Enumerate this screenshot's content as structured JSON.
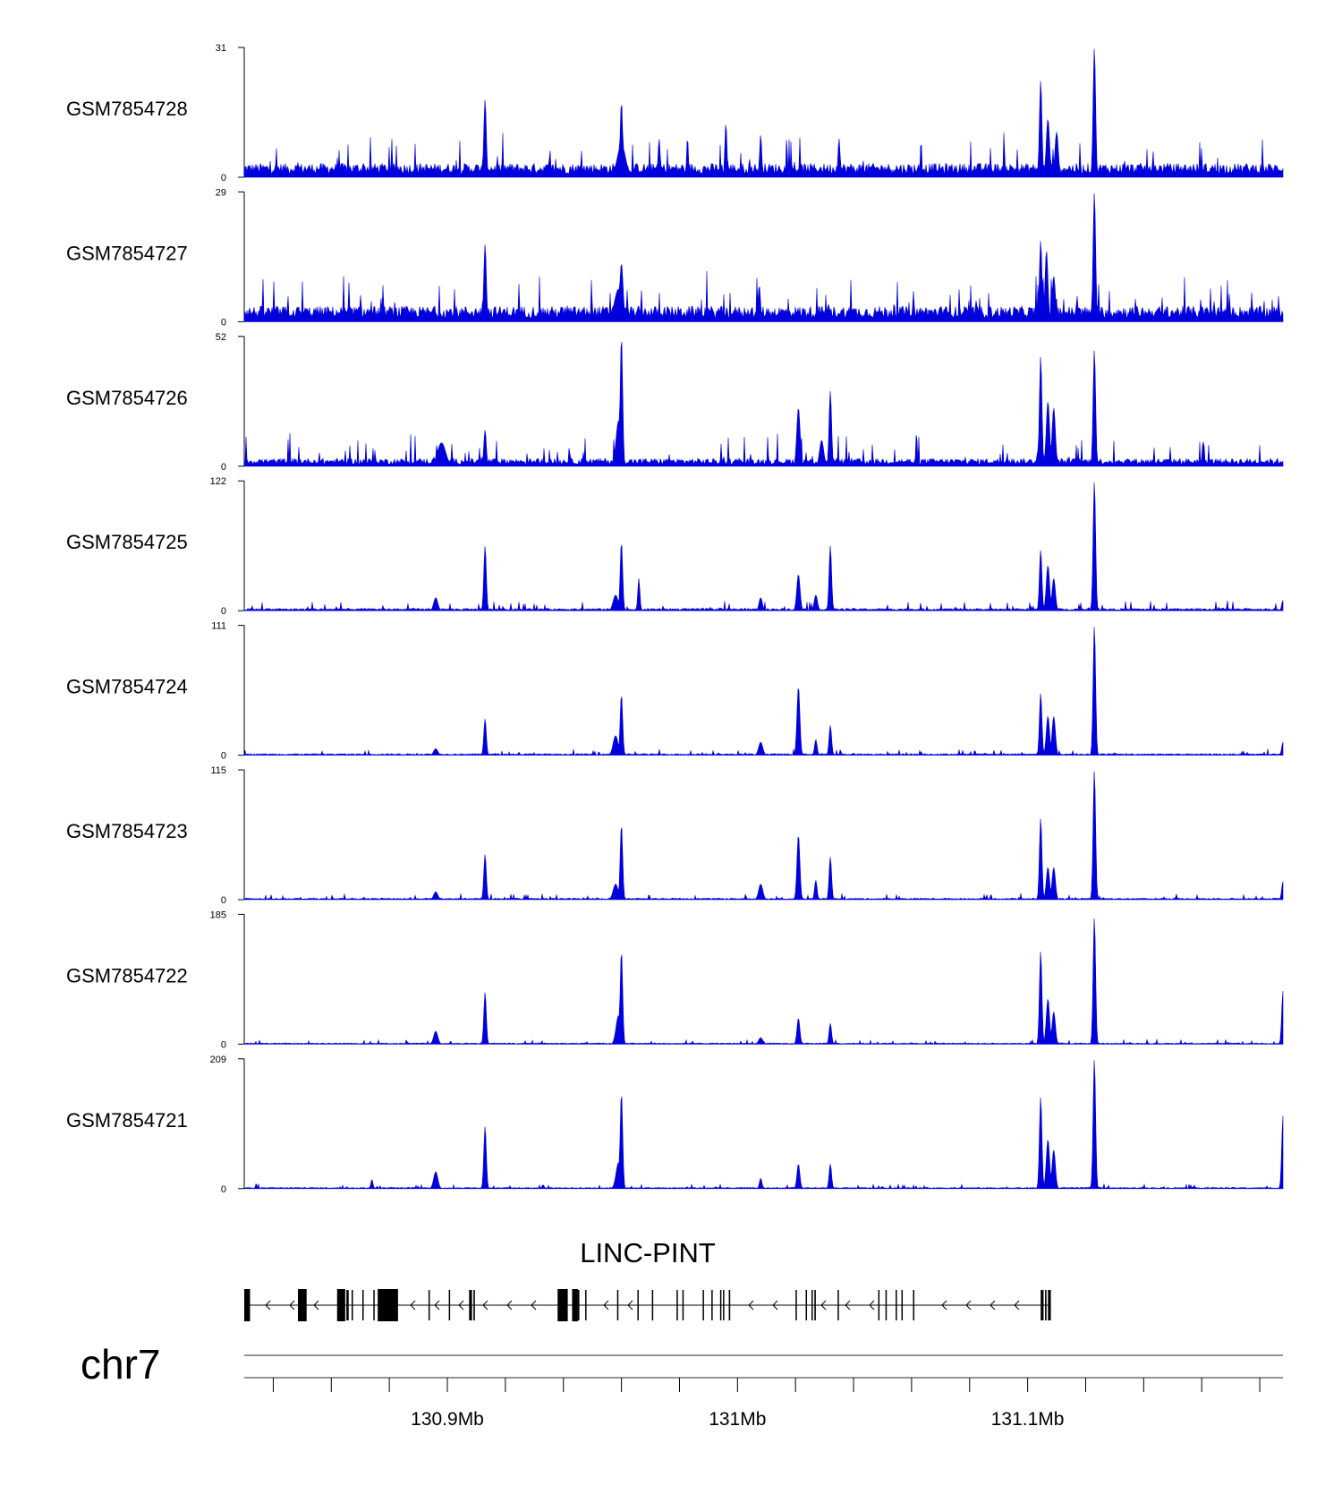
{
  "chart_data": {
    "type": "area",
    "title": "",
    "region": {
      "chromosome": "chr7",
      "start_mb": 130.83,
      "end_mb": 131.188
    },
    "xaxis": {
      "ticks_mb": [
        130.9,
        131.0,
        131.1
      ],
      "tick_labels": [
        "130.9Mb",
        "131Mb",
        "131.1Mb"
      ]
    },
    "color": "#0000dd",
    "series": [
      {
        "name": "GSM7854728",
        "ymax": 31,
        "ymax_label": "31",
        "ymin_label": "0",
        "baseline": 0.09,
        "noise": 0.1,
        "peaks": [
          [
            130.913,
            0.6,
            0.0006
          ],
          [
            130.96,
            0.58,
            0.0006
          ],
          [
            130.96,
            0.25,
            0.002
          ],
          [
            130.973,
            0.3,
            0.0005
          ],
          [
            130.996,
            0.42,
            0.0005
          ],
          [
            131.008,
            0.33,
            0.0005
          ],
          [
            131.035,
            0.3,
            0.0005
          ],
          [
            131.1045,
            0.75,
            0.0006
          ],
          [
            131.107,
            0.45,
            0.0008
          ],
          [
            131.11,
            0.35,
            0.0008
          ],
          [
            131.123,
            1.0,
            0.0006
          ]
        ]
      },
      {
        "name": "GSM7854727",
        "ymax": 29,
        "ymax_label": "29",
        "ymin_label": "0",
        "baseline": 0.1,
        "noise": 0.11,
        "peaks": [
          [
            130.913,
            0.6,
            0.0006
          ],
          [
            130.96,
            0.45,
            0.0008
          ],
          [
            130.959,
            0.25,
            0.002
          ],
          [
            131.0075,
            0.28,
            0.0006
          ],
          [
            131.1045,
            0.63,
            0.0006
          ],
          [
            131.1065,
            0.55,
            0.0007
          ],
          [
            131.109,
            0.35,
            0.0008
          ],
          [
            131.123,
            1.0,
            0.0006
          ]
        ]
      },
      {
        "name": "GSM7854726",
        "ymax": 52,
        "ymax_label": "52",
        "ymin_label": "0",
        "baseline": 0.05,
        "noise": 0.08,
        "peaks": [
          [
            130.898,
            0.18,
            0.002
          ],
          [
            130.913,
            0.28,
            0.0006
          ],
          [
            130.96,
            1.0,
            0.0006
          ],
          [
            130.959,
            0.35,
            0.0012
          ],
          [
            131.021,
            0.45,
            0.0008
          ],
          [
            131.032,
            0.58,
            0.0006
          ],
          [
            131.029,
            0.2,
            0.001
          ],
          [
            131.1045,
            0.85,
            0.0006
          ],
          [
            131.107,
            0.5,
            0.0008
          ],
          [
            131.109,
            0.45,
            0.0008
          ],
          [
            131.123,
            0.9,
            0.0006
          ]
        ]
      },
      {
        "name": "GSM7854725",
        "ymax": 122,
        "ymax_label": "122",
        "ymin_label": "0",
        "baseline": 0.015,
        "noise": 0.025,
        "peaks": [
          [
            130.896,
            0.1,
            0.001
          ],
          [
            130.913,
            0.5,
            0.0006
          ],
          [
            130.96,
            0.53,
            0.0006
          ],
          [
            130.958,
            0.12,
            0.0012
          ],
          [
            130.966,
            0.25,
            0.0005
          ],
          [
            131.008,
            0.1,
            0.0008
          ],
          [
            131.021,
            0.28,
            0.0008
          ],
          [
            131.032,
            0.5,
            0.0006
          ],
          [
            131.027,
            0.12,
            0.0008
          ],
          [
            131.1045,
            0.47,
            0.0006
          ],
          [
            131.107,
            0.35,
            0.0008
          ],
          [
            131.109,
            0.25,
            0.0008
          ],
          [
            131.123,
            1.0,
            0.0006
          ],
          [
            131.188,
            0.08,
            0.0006
          ]
        ]
      },
      {
        "name": "GSM7854724",
        "ymax": 111,
        "ymax_label": "111",
        "ymin_label": "0",
        "baseline": 0.01,
        "noise": 0.015,
        "peaks": [
          [
            130.896,
            0.05,
            0.001
          ],
          [
            130.913,
            0.28,
            0.0006
          ],
          [
            130.96,
            0.47,
            0.0006
          ],
          [
            130.958,
            0.15,
            0.0012
          ],
          [
            131.008,
            0.1,
            0.001
          ],
          [
            131.021,
            0.53,
            0.0007
          ],
          [
            131.027,
            0.12,
            0.0006
          ],
          [
            131.032,
            0.23,
            0.0006
          ],
          [
            131.1045,
            0.48,
            0.0006
          ],
          [
            131.107,
            0.3,
            0.0008
          ],
          [
            131.109,
            0.3,
            0.0008
          ],
          [
            131.123,
            1.0,
            0.0006
          ],
          [
            131.188,
            0.1,
            0.0006
          ]
        ]
      },
      {
        "name": "GSM7854723",
        "ymax": 115,
        "ymax_label": "115",
        "ymin_label": "0",
        "baseline": 0.01,
        "noise": 0.015,
        "peaks": [
          [
            130.896,
            0.06,
            0.001
          ],
          [
            130.913,
            0.35,
            0.0006
          ],
          [
            130.96,
            0.58,
            0.0006
          ],
          [
            130.958,
            0.12,
            0.0012
          ],
          [
            131.008,
            0.12,
            0.001
          ],
          [
            131.021,
            0.5,
            0.0007
          ],
          [
            131.027,
            0.15,
            0.0006
          ],
          [
            131.032,
            0.33,
            0.0006
          ],
          [
            131.1045,
            0.63,
            0.0006
          ],
          [
            131.107,
            0.25,
            0.0008
          ],
          [
            131.109,
            0.25,
            0.0008
          ],
          [
            131.123,
            1.0,
            0.0006
          ],
          [
            131.188,
            0.14,
            0.0006
          ]
        ]
      },
      {
        "name": "GSM7854722",
        "ymax": 185,
        "ymax_label": "185",
        "ymin_label": "0",
        "baseline": 0.008,
        "noise": 0.012,
        "peaks": [
          [
            130.896,
            0.1,
            0.001
          ],
          [
            130.913,
            0.4,
            0.0006
          ],
          [
            130.96,
            0.72,
            0.0006
          ],
          [
            130.959,
            0.22,
            0.0012
          ],
          [
            131.008,
            0.05,
            0.001
          ],
          [
            131.021,
            0.2,
            0.0007
          ],
          [
            131.032,
            0.16,
            0.0006
          ],
          [
            131.1045,
            0.72,
            0.0006
          ],
          [
            131.107,
            0.35,
            0.0008
          ],
          [
            131.109,
            0.25,
            0.0008
          ],
          [
            131.123,
            0.98,
            0.0006
          ],
          [
            131.188,
            0.41,
            0.0006
          ]
        ]
      },
      {
        "name": "GSM7854721",
        "ymax": 209,
        "ymax_label": "209",
        "ymin_label": "0",
        "baseline": 0.008,
        "noise": 0.012,
        "peaks": [
          [
            130.896,
            0.13,
            0.001
          ],
          [
            130.874,
            0.07,
            0.0005
          ],
          [
            130.913,
            0.48,
            0.0006
          ],
          [
            130.96,
            0.74,
            0.0006
          ],
          [
            130.959,
            0.2,
            0.0012
          ],
          [
            131.008,
            0.08,
            0.0006
          ],
          [
            131.021,
            0.19,
            0.0007
          ],
          [
            131.032,
            0.19,
            0.0006
          ],
          [
            131.1045,
            0.71,
            0.0006
          ],
          [
            131.107,
            0.38,
            0.0008
          ],
          [
            131.109,
            0.3,
            0.0008
          ],
          [
            131.123,
            1.0,
            0.0006
          ],
          [
            131.188,
            0.56,
            0.0006
          ]
        ]
      }
    ],
    "gene": {
      "name": "LINC-PINT",
      "strand": "-",
      "start_mb": 130.83,
      "end_mb": 131.108,
      "exons_mb": [
        [
          130.83,
          130.832
        ],
        [
          130.8485,
          130.8515
        ],
        [
          130.862,
          130.8648
        ],
        [
          130.8652,
          130.866
        ],
        [
          130.867,
          130.8673
        ],
        [
          130.8707,
          130.871
        ],
        [
          130.8745,
          130.8748
        ],
        [
          130.876,
          130.883
        ],
        [
          130.8935,
          130.8938
        ],
        [
          130.9005,
          130.9008
        ],
        [
          130.9075,
          130.9085
        ],
        [
          130.909,
          130.9095
        ],
        [
          130.938,
          130.9415
        ],
        [
          130.943,
          130.945
        ],
        [
          130.945,
          130.9455
        ],
        [
          130.9475,
          130.9478
        ],
        [
          130.9585,
          130.9588
        ],
        [
          130.9655,
          130.9658
        ],
        [
          130.9705,
          130.9708
        ],
        [
          130.979,
          130.9793
        ],
        [
          130.981,
          130.9813
        ],
        [
          130.988,
          130.9883
        ],
        [
          130.991,
          130.9913
        ],
        [
          130.994,
          130.9943
        ],
        [
          130.995,
          130.9953
        ],
        [
          130.997,
          130.9975
        ],
        [
          131.02,
          131.0203
        ],
        [
          131.0235,
          131.0238
        ],
        [
          131.0255,
          131.0258
        ],
        [
          131.0265,
          131.027
        ],
        [
          131.0345,
          131.0348
        ],
        [
          131.0485,
          131.0488
        ],
        [
          131.051,
          131.0513
        ],
        [
          131.0545,
          131.0548
        ],
        [
          131.0565,
          131.0568
        ],
        [
          131.0605,
          131.0608
        ],
        [
          131.1045,
          131.1055
        ],
        [
          131.106,
          131.1065
        ],
        [
          131.107,
          131.108
        ]
      ]
    }
  },
  "labels": {
    "chromosome": "chr7",
    "gene_name": "LINC-PINT"
  }
}
